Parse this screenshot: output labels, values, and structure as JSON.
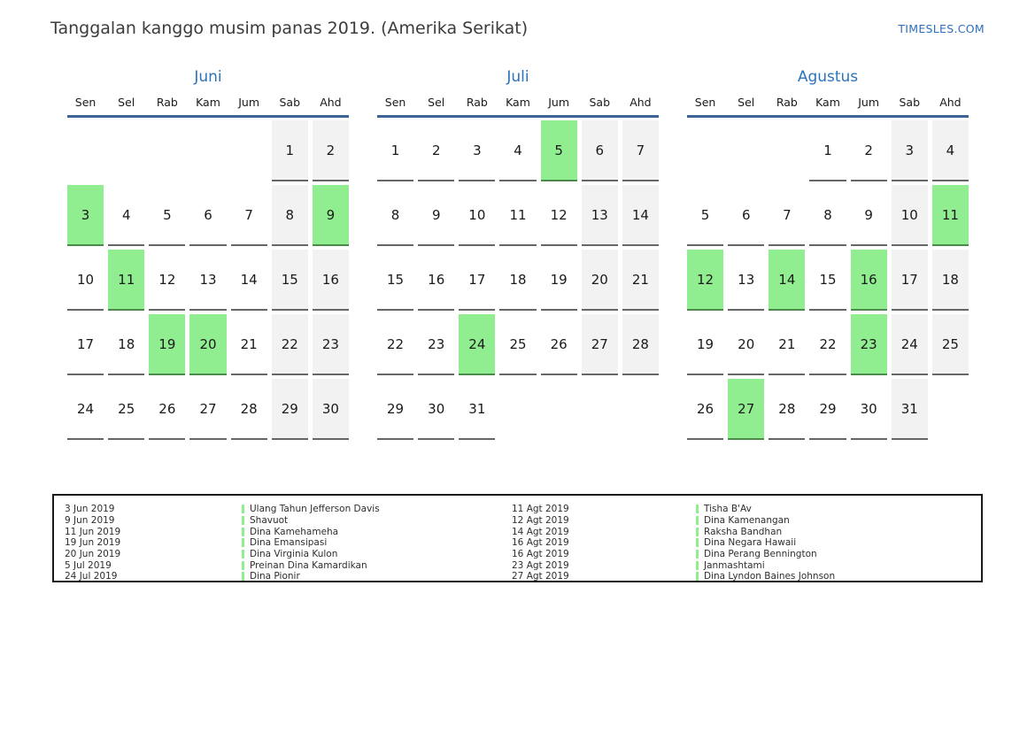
{
  "page": {
    "title": "Tanggalan kanggo musim panas 2019. (Amerika Serikat)",
    "site_link": "TIMESLES.COM"
  },
  "colors": {
    "accent_blue": "#2b73bd",
    "header_rule_blue": "#3c6494",
    "holiday_green": "#90ee90",
    "weekend_gray": "#f2f2f2"
  },
  "weekday_headers": [
    "Sen",
    "Sel",
    "Rab",
    "Kam",
    "Jum",
    "Sab",
    "Ahd"
  ],
  "months": [
    {
      "name": "Juni",
      "weeks": [
        [
          {
            "day": "",
            "type": "empty"
          },
          {
            "day": "",
            "type": "empty"
          },
          {
            "day": "",
            "type": "empty"
          },
          {
            "day": "",
            "type": "empty"
          },
          {
            "day": "",
            "type": "empty"
          },
          {
            "day": "1",
            "type": "weekend"
          },
          {
            "day": "2",
            "type": "weekend"
          }
        ],
        [
          {
            "day": "3",
            "type": "holiday"
          },
          {
            "day": "4",
            "type": "day"
          },
          {
            "day": "5",
            "type": "day"
          },
          {
            "day": "6",
            "type": "day"
          },
          {
            "day": "7",
            "type": "day"
          },
          {
            "day": "8",
            "type": "weekend"
          },
          {
            "day": "9",
            "type": "holiday"
          }
        ],
        [
          {
            "day": "10",
            "type": "day"
          },
          {
            "day": "11",
            "type": "holiday"
          },
          {
            "day": "12",
            "type": "day"
          },
          {
            "day": "13",
            "type": "day"
          },
          {
            "day": "14",
            "type": "day"
          },
          {
            "day": "15",
            "type": "weekend"
          },
          {
            "day": "16",
            "type": "weekend"
          }
        ],
        [
          {
            "day": "17",
            "type": "day"
          },
          {
            "day": "18",
            "type": "day"
          },
          {
            "day": "19",
            "type": "holiday"
          },
          {
            "day": "20",
            "type": "holiday"
          },
          {
            "day": "21",
            "type": "day"
          },
          {
            "day": "22",
            "type": "weekend"
          },
          {
            "day": "23",
            "type": "weekend"
          }
        ],
        [
          {
            "day": "24",
            "type": "day"
          },
          {
            "day": "25",
            "type": "day"
          },
          {
            "day": "26",
            "type": "day"
          },
          {
            "day": "27",
            "type": "day"
          },
          {
            "day": "28",
            "type": "day"
          },
          {
            "day": "29",
            "type": "weekend"
          },
          {
            "day": "30",
            "type": "weekend"
          }
        ]
      ]
    },
    {
      "name": "Juli",
      "weeks": [
        [
          {
            "day": "1",
            "type": "day"
          },
          {
            "day": "2",
            "type": "day"
          },
          {
            "day": "3",
            "type": "day"
          },
          {
            "day": "4",
            "type": "day"
          },
          {
            "day": "5",
            "type": "holiday"
          },
          {
            "day": "6",
            "type": "weekend"
          },
          {
            "day": "7",
            "type": "weekend"
          }
        ],
        [
          {
            "day": "8",
            "type": "day"
          },
          {
            "day": "9",
            "type": "day"
          },
          {
            "day": "10",
            "type": "day"
          },
          {
            "day": "11",
            "type": "day"
          },
          {
            "day": "12",
            "type": "day"
          },
          {
            "day": "13",
            "type": "weekend"
          },
          {
            "day": "14",
            "type": "weekend"
          }
        ],
        [
          {
            "day": "15",
            "type": "day"
          },
          {
            "day": "16",
            "type": "day"
          },
          {
            "day": "17",
            "type": "day"
          },
          {
            "day": "18",
            "type": "day"
          },
          {
            "day": "19",
            "type": "day"
          },
          {
            "day": "20",
            "type": "weekend"
          },
          {
            "day": "21",
            "type": "weekend"
          }
        ],
        [
          {
            "day": "22",
            "type": "day"
          },
          {
            "day": "23",
            "type": "day"
          },
          {
            "day": "24",
            "type": "holiday"
          },
          {
            "day": "25",
            "type": "day"
          },
          {
            "day": "26",
            "type": "day"
          },
          {
            "day": "27",
            "type": "weekend"
          },
          {
            "day": "28",
            "type": "weekend"
          }
        ],
        [
          {
            "day": "29",
            "type": "day"
          },
          {
            "day": "30",
            "type": "day"
          },
          {
            "day": "31",
            "type": "day"
          },
          {
            "day": "",
            "type": "empty"
          },
          {
            "day": "",
            "type": "empty"
          },
          {
            "day": "",
            "type": "empty"
          },
          {
            "day": "",
            "type": "empty"
          }
        ]
      ]
    },
    {
      "name": "Agustus",
      "weeks": [
        [
          {
            "day": "",
            "type": "empty"
          },
          {
            "day": "",
            "type": "empty"
          },
          {
            "day": "",
            "type": "empty"
          },
          {
            "day": "1",
            "type": "day"
          },
          {
            "day": "2",
            "type": "day"
          },
          {
            "day": "3",
            "type": "weekend"
          },
          {
            "day": "4",
            "type": "weekend"
          }
        ],
        [
          {
            "day": "5",
            "type": "day"
          },
          {
            "day": "6",
            "type": "day"
          },
          {
            "day": "7",
            "type": "day"
          },
          {
            "day": "8",
            "type": "day"
          },
          {
            "day": "9",
            "type": "day"
          },
          {
            "day": "10",
            "type": "weekend"
          },
          {
            "day": "11",
            "type": "holiday"
          }
        ],
        [
          {
            "day": "12",
            "type": "holiday"
          },
          {
            "day": "13",
            "type": "day"
          },
          {
            "day": "14",
            "type": "holiday"
          },
          {
            "day": "15",
            "type": "day"
          },
          {
            "day": "16",
            "type": "holiday"
          },
          {
            "day": "17",
            "type": "weekend"
          },
          {
            "day": "18",
            "type": "weekend"
          }
        ],
        [
          {
            "day": "19",
            "type": "day"
          },
          {
            "day": "20",
            "type": "day"
          },
          {
            "day": "21",
            "type": "day"
          },
          {
            "day": "22",
            "type": "day"
          },
          {
            "day": "23",
            "type": "holiday"
          },
          {
            "day": "24",
            "type": "weekend"
          },
          {
            "day": "25",
            "type": "weekend"
          }
        ],
        [
          {
            "day": "26",
            "type": "day"
          },
          {
            "day": "27",
            "type": "holiday"
          },
          {
            "day": "28",
            "type": "day"
          },
          {
            "day": "29",
            "type": "day"
          },
          {
            "day": "30",
            "type": "day"
          },
          {
            "day": "31",
            "type": "weekend"
          },
          {
            "day": "",
            "type": "empty"
          }
        ]
      ]
    }
  ],
  "legend": {
    "columns": [
      {
        "entries": [
          {
            "date": "3 Jun 2019",
            "event": "Ulang Tahun Jefferson Davis"
          },
          {
            "date": "9 Jun 2019",
            "event": "Shavuot"
          },
          {
            "date": "11 Jun 2019",
            "event": "Dina Kamehameha"
          },
          {
            "date": "19 Jun 2019",
            "event": "Dina Emansipasi"
          },
          {
            "date": "20 Jun 2019",
            "event": "Dina Virginia Kulon"
          },
          {
            "date": "5 Jul 2019",
            "event": "Preinan Dina Kamardikan"
          },
          {
            "date": "24 Jul 2019",
            "event": "Dina Pionir"
          }
        ]
      },
      {
        "entries": [
          {
            "date": "11 Agt 2019",
            "event": "Tisha B'Av"
          },
          {
            "date": "12 Agt 2019",
            "event": "Dina Kamenangan"
          },
          {
            "date": "14 Agt 2019",
            "event": "Raksha Bandhan"
          },
          {
            "date": "16 Agt 2019",
            "event": "Dina Negara Hawaii"
          },
          {
            "date": "16 Agt 2019",
            "event": "Dina Perang Bennington"
          },
          {
            "date": "23 Agt 2019",
            "event": "Janmashtami"
          },
          {
            "date": "27 Agt 2019",
            "event": "Dina Lyndon Baines Johnson"
          }
        ]
      }
    ]
  }
}
